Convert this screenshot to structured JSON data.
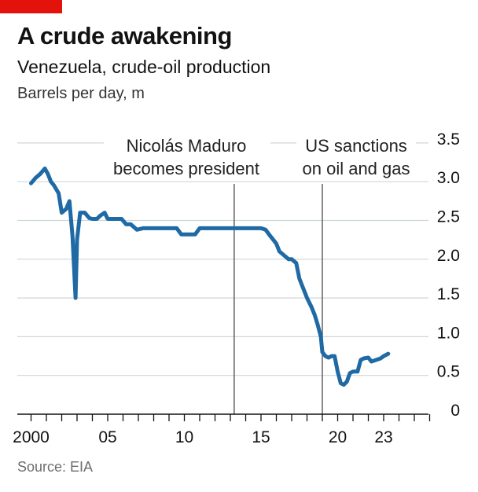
{
  "header": {
    "title": "A crude awakening",
    "subtitle": "Venezuela, crude-oil production",
    "unit": "Barrels per day, m"
  },
  "footer": {
    "source": "Source: EIA"
  },
  "colors": {
    "line": "#1f6aa5",
    "accent": "#e3120b",
    "grid": "#cfd6da",
    "axis": "#121212"
  },
  "chart_data": {
    "type": "line",
    "title": "A crude awakening",
    "subtitle": "Venezuela, crude-oil production",
    "ylabel": "Barrels per day, m",
    "ylim": [
      0,
      3.5
    ],
    "xlim": [
      2000,
      2026
    ],
    "y_ticks": [
      0,
      0.5,
      1.0,
      1.5,
      2.0,
      2.5,
      3.0,
      3.5
    ],
    "y_tick_labels": [
      "0",
      "0.5",
      "1.0",
      "1.5",
      "2.0",
      "2.5",
      "3.0",
      "3.5"
    ],
    "x_ticks": [
      2000,
      2005,
      2010,
      2015,
      2020,
      2023
    ],
    "x_tick_labels": [
      "2000",
      "05",
      "10",
      "15",
      "20",
      "23"
    ],
    "grid": true,
    "series": [
      {
        "x": [
          2000.0,
          2000.3,
          2000.6,
          2000.9,
          2001.1,
          2001.3,
          2001.5,
          2001.8,
          2002.0,
          2002.3,
          2002.5,
          2002.7,
          2002.9,
          2003.0,
          2003.2,
          2003.5,
          2003.8,
          2004.0,
          2004.3,
          2004.5,
          2004.8,
          2005.0,
          2005.5,
          2005.9,
          2006.2,
          2006.5,
          2006.9,
          2007.3,
          2008.0,
          2008.5,
          2009.0,
          2009.5,
          2009.8,
          2010.0,
          2010.3,
          2010.7,
          2011.0,
          2011.5,
          2012.0,
          2012.5,
          2013.0,
          2013.5,
          2014.0,
          2014.5,
          2015.0,
          2015.3,
          2015.6,
          2015.8,
          2016.0,
          2016.2,
          2016.5,
          2016.8,
          2017.0,
          2017.3,
          2017.5,
          2017.8,
          2018.0,
          2018.3,
          2018.5,
          2018.7,
          2018.9,
          2019.0,
          2019.2,
          2019.4,
          2019.6,
          2019.8,
          2020.0,
          2020.2,
          2020.4,
          2020.6,
          2020.8,
          2021.0,
          2021.3,
          2021.5,
          2021.7,
          2022.0,
          2022.2,
          2022.5,
          2022.8,
          2023.0,
          2023.3
        ],
        "values": [
          2.98,
          3.05,
          3.1,
          3.17,
          3.1,
          3.0,
          2.95,
          2.85,
          2.6,
          2.65,
          2.75,
          2.3,
          1.5,
          2.25,
          2.6,
          2.6,
          2.53,
          2.52,
          2.52,
          2.56,
          2.6,
          2.52,
          2.52,
          2.52,
          2.45,
          2.45,
          2.38,
          2.4,
          2.4,
          2.4,
          2.4,
          2.4,
          2.32,
          2.32,
          2.32,
          2.32,
          2.4,
          2.4,
          2.4,
          2.4,
          2.4,
          2.4,
          2.4,
          2.4,
          2.4,
          2.38,
          2.3,
          2.25,
          2.2,
          2.1,
          2.05,
          2.0,
          2.0,
          1.95,
          1.75,
          1.6,
          1.5,
          1.38,
          1.28,
          1.15,
          1.0,
          0.8,
          0.75,
          0.73,
          0.75,
          0.75,
          0.55,
          0.4,
          0.38,
          0.42,
          0.53,
          0.55,
          0.55,
          0.7,
          0.72,
          0.73,
          0.68,
          0.7,
          0.72,
          0.75,
          0.78
        ]
      }
    ],
    "annotations": [
      {
        "x": 2013.25,
        "lines": [
          "Nicolás Maduro",
          "becomes president"
        ]
      },
      {
        "x": 2019.0,
        "lines": [
          "US sanctions",
          "on oil and gas"
        ]
      }
    ]
  }
}
